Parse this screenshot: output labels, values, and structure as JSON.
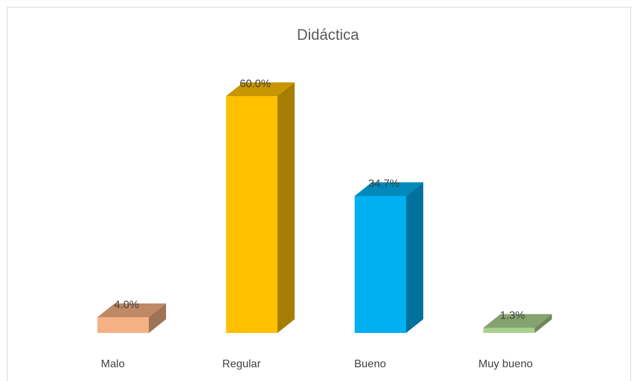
{
  "chart_data": {
    "type": "bar3d",
    "title": "Didáctica",
    "categories": [
      "Malo",
      "Regular",
      "Bueno",
      "Muy bueno"
    ],
    "values": [
      4.0,
      60.0,
      34.7,
      1.3
    ],
    "value_labels": [
      "4.0%",
      "60.0%",
      "34.7%",
      "1.3%"
    ],
    "colors": [
      "#f4b183",
      "#ffc000",
      "#00b0f0",
      "#a9d18e"
    ]
  }
}
